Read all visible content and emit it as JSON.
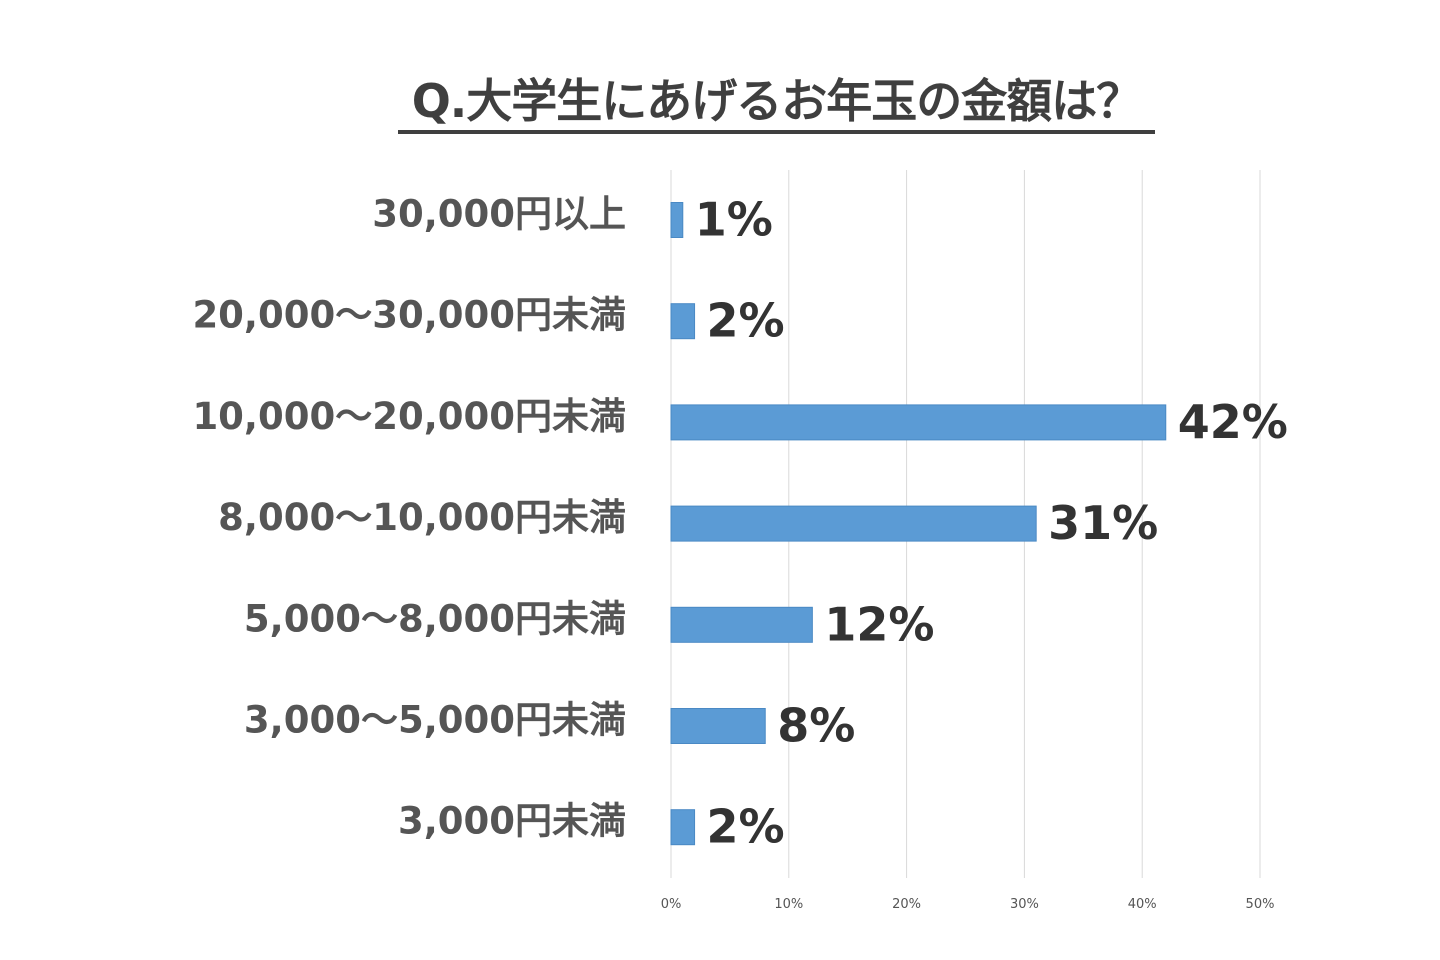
{
  "chart_data": {
    "type": "bar",
    "orientation": "horizontal",
    "title": "Q.大学生にあげるお年玉の金額は？",
    "categories": [
      "30,000円以上",
      "20,000～30,000円未満",
      "10,000～20,000円未満",
      "8,000～10,000円未満",
      "5,000～8,000円未満",
      "3,000～5,000円未満",
      "3,000円未満"
    ],
    "values": [
      1,
      2,
      42,
      31,
      12,
      8,
      2
    ],
    "data_labels": [
      "1%",
      "2%",
      "42%",
      "31%",
      "12%",
      "8%",
      "2%"
    ],
    "xlim": [
      0,
      50
    ],
    "xticks": [
      0,
      10,
      20,
      30,
      40,
      50
    ],
    "xtick_labels": [
      "0%",
      "10%",
      "20%",
      "30%",
      "40%",
      "50%"
    ],
    "xlabel": "",
    "ylabel": "",
    "grid": true,
    "legend": "none",
    "colors": {
      "bar": "#5b9bd5",
      "bar_edge": "#4a89c4",
      "grid": "#d9d9d9",
      "title": "#3f3f3f"
    }
  }
}
